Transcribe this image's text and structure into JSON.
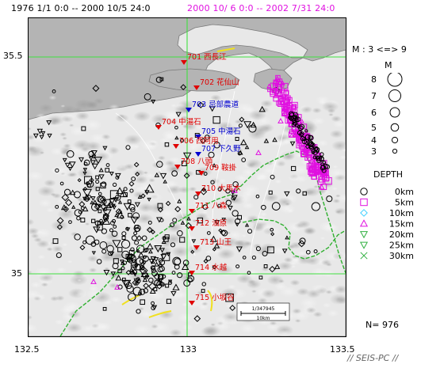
{
  "header": {
    "range_a": "1976 1/1  0:0 -- 2000 10/5 24:0",
    "range_b": "2000 10/ 6  0:0 -- 2002  7/31 24:0"
  },
  "axes": {
    "lat_labels": [
      "35.5",
      "35"
    ],
    "lon_labels": [
      "132.5",
      "133",
      "133.5"
    ]
  },
  "stations": [
    {
      "id": "701",
      "name": "西長江",
      "color": "#e00000"
    },
    {
      "id": "702",
      "name": "花仙山",
      "color": "#e00000"
    },
    {
      "id": "703",
      "name": "忌部農道",
      "color": "#0000d0"
    },
    {
      "id": "704",
      "name": "中湯石",
      "color": "#e00000"
    },
    {
      "id": "705",
      "name": "中湯石",
      "color": "#0000d0"
    },
    {
      "id": "706",
      "name": "西阿用",
      "color": "#e00000"
    },
    {
      "id": "707",
      "name": "下久野",
      "color": "#0000d0"
    },
    {
      "id": "708",
      "name": "八頭",
      "color": "#e00000"
    },
    {
      "id": "709",
      "name": "鞍掛",
      "color": "#e00000"
    },
    {
      "id": "710",
      "name": "大馬木",
      "color": "#e00000"
    },
    {
      "id": "711",
      "name": "八森",
      "color": "#e00000"
    },
    {
      "id": "712",
      "name": "油原",
      "color": "#e00000"
    },
    {
      "id": "713",
      "name": "山王",
      "color": "#e00000"
    },
    {
      "id": "714",
      "name": "水越",
      "color": "#e00000"
    },
    {
      "id": "715",
      "name": "小坂谷",
      "color": "#e00000"
    }
  ],
  "scale": {
    "ratio": "1/347945",
    "distance": "10km"
  },
  "magnitude_legend": {
    "title": "M : 3 <=> 9",
    "label": "M",
    "values": [
      "8",
      "7",
      "6",
      "5",
      "4",
      "3"
    ]
  },
  "depth_legend": {
    "title": "DEPTH",
    "items": [
      {
        "label": "0km",
        "shape": "circle",
        "color": "#000000"
      },
      {
        "label": "5km",
        "shape": "square",
        "color": "#e010e0"
      },
      {
        "label": "10km",
        "shape": "diamond",
        "color": "#40d0ff"
      },
      {
        "label": "15km",
        "shape": "triangle-up",
        "color": "#e010e0"
      },
      {
        "label": "20km",
        "shape": "triangle-down",
        "color": "#30b040"
      },
      {
        "label": "25km",
        "shape": "triangle-down",
        "color": "#30b040"
      },
      {
        "label": "30km",
        "shape": "x",
        "color": "#30b040"
      }
    ]
  },
  "footer": {
    "count": "N= 976",
    "brand": "// SEIS-PC //"
  },
  "colors": {
    "grid": "#40e040",
    "sea": "#b4b4b4",
    "land": "#ececec",
    "highlight": "#e010e0"
  }
}
